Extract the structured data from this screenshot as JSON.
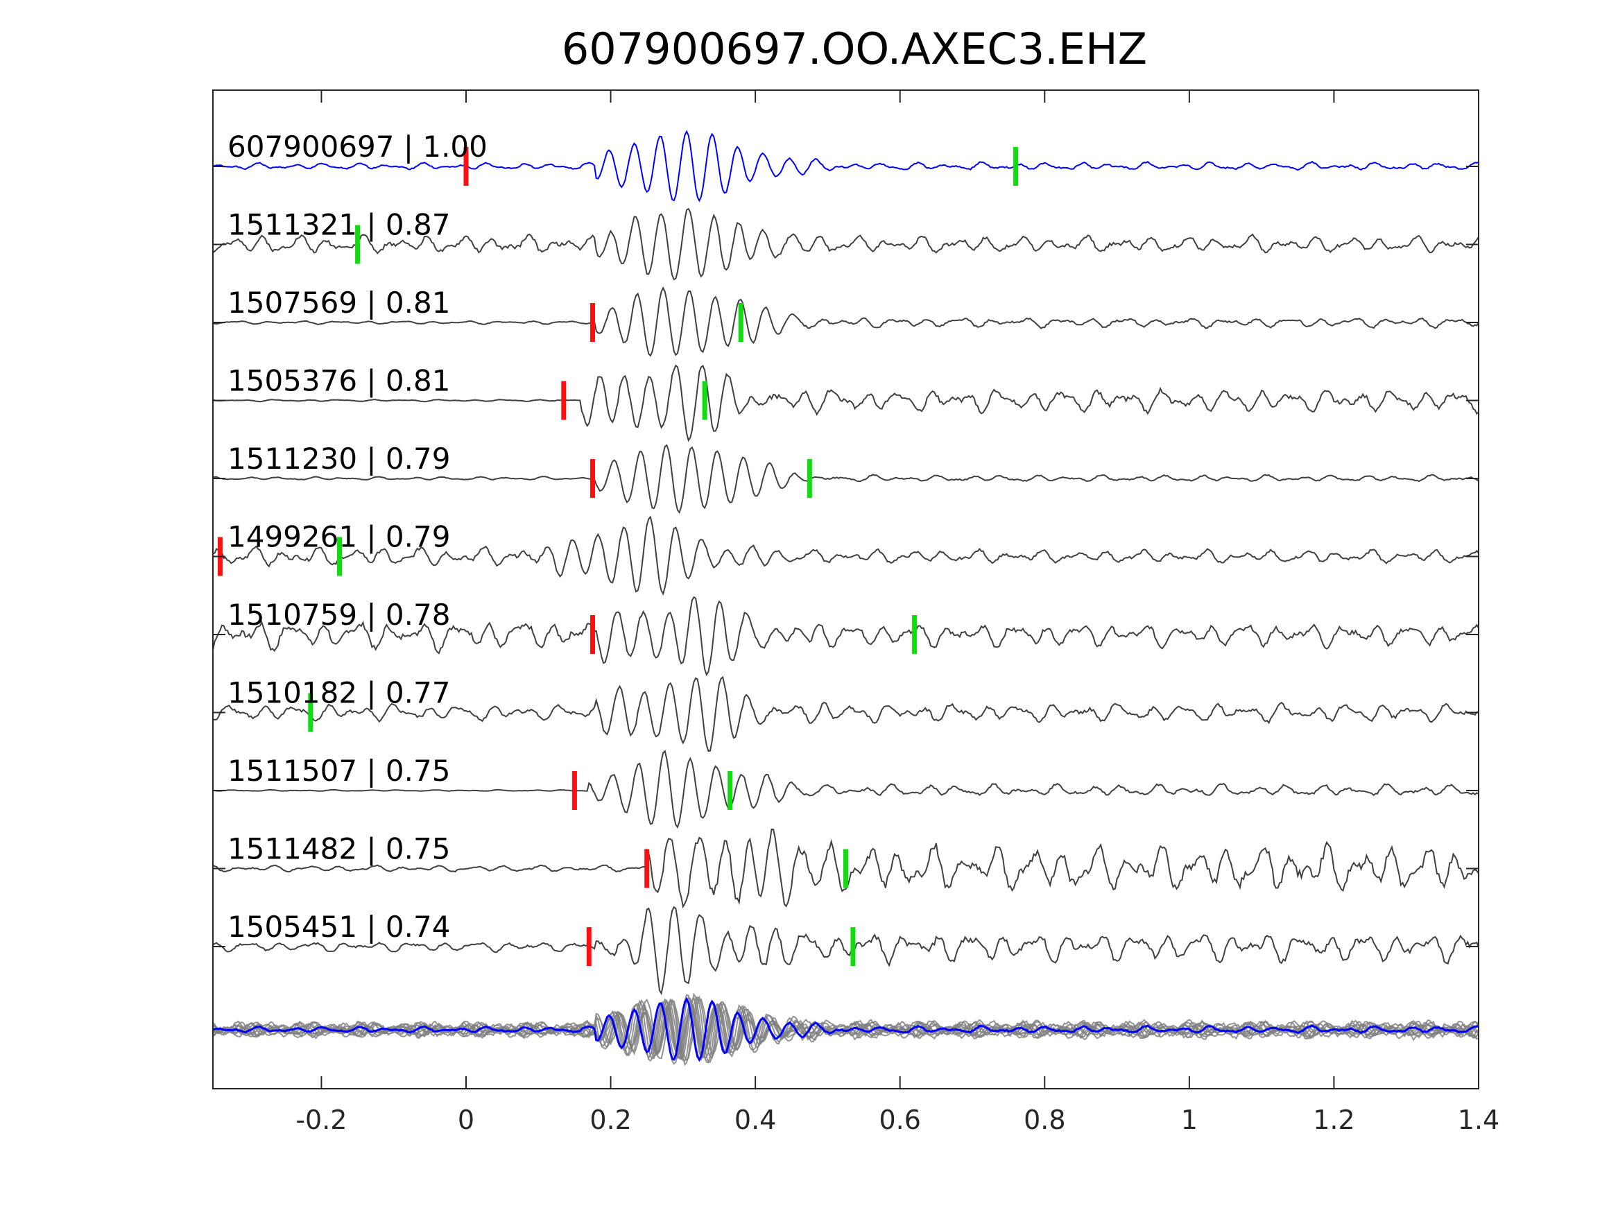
{
  "chart_data": {
    "type": "line",
    "title": "607900697.OO.AXEC3.EHZ",
    "xlabel": "",
    "ylabel": "",
    "xlim": [
      -0.35,
      1.4
    ],
    "xticks": [
      -0.2,
      0,
      0.2,
      0.4,
      0.6,
      0.8,
      1,
      1.2,
      1.4
    ],
    "xtick_labels": [
      "-0.2",
      "0",
      "0.2",
      "0.4",
      "0.6",
      "0.8",
      "1",
      "1.2",
      "1.4"
    ],
    "grid": false,
    "legend": "none",
    "colors": {
      "template": "#0000ff",
      "trace": "#404040",
      "overlay": "#808080",
      "p_pick": "#ff1010",
      "s_pick": "#10dd10",
      "axes": "#262626"
    },
    "series": [
      {
        "label": "607900697 | 1.00",
        "id": "607900697",
        "cc": 1.0,
        "color": "#0000ff",
        "p_pick": 0.0,
        "s_pick": 0.76,
        "onset": 0.18,
        "pre_noise": 0.1,
        "post_noise": 0.12,
        "seed": 1
      },
      {
        "label": "1511321 | 0.87",
        "id": "1511321",
        "cc": 0.87,
        "color": "#404040",
        "p_pick": null,
        "s_pick": -0.15,
        "onset": 0.18,
        "pre_noise": 0.28,
        "post_noise": 0.25,
        "seed": 2
      },
      {
        "label": "1507569 | 0.81",
        "id": "1507569",
        "cc": 0.81,
        "color": "#404040",
        "p_pick": 0.175,
        "s_pick": 0.38,
        "onset": 0.18,
        "pre_noise": 0.05,
        "post_noise": 0.15,
        "seed": 3
      },
      {
        "label": "1505376 | 0.81",
        "id": "1505376",
        "cc": 0.81,
        "color": "#404040",
        "p_pick": 0.135,
        "s_pick": 0.33,
        "onset": 0.16,
        "pre_noise": 0.03,
        "post_noise": 0.35,
        "seed": 4
      },
      {
        "label": "1511230 | 0.79",
        "id": "1511230",
        "cc": 0.79,
        "color": "#404040",
        "p_pick": 0.175,
        "s_pick": 0.475,
        "onset": 0.18,
        "pre_noise": 0.05,
        "post_noise": 0.1,
        "seed": 5
      },
      {
        "label": "1499261 | 0.79",
        "id": "1499261",
        "cc": 0.79,
        "color": "#404040",
        "p_pick": -0.34,
        "s_pick": -0.175,
        "onset": 0.12,
        "pre_noise": 0.3,
        "post_noise": 0.2,
        "seed": 6
      },
      {
        "label": "1510759 | 0.78",
        "id": "1510759",
        "cc": 0.78,
        "color": "#404040",
        "p_pick": 0.175,
        "s_pick": 0.62,
        "onset": 0.18,
        "pre_noise": 0.45,
        "post_noise": 0.35,
        "seed": 7
      },
      {
        "label": "1510182 | 0.77",
        "id": "1510182",
        "cc": 0.77,
        "color": "#404040",
        "p_pick": null,
        "s_pick": -0.215,
        "onset": 0.18,
        "pre_noise": 0.25,
        "post_noise": 0.28,
        "seed": 8
      },
      {
        "label": "1511507 | 0.75",
        "id": "1511507",
        "cc": 0.75,
        "color": "#404040",
        "p_pick": 0.15,
        "s_pick": 0.365,
        "onset": 0.17,
        "pre_noise": 0.02,
        "post_noise": 0.18,
        "seed": 9
      },
      {
        "label": "1511482 | 0.75",
        "id": "1511482",
        "cc": 0.75,
        "color": "#404040",
        "p_pick": 0.25,
        "s_pick": 0.525,
        "onset": 0.25,
        "pre_noise": 0.1,
        "post_noise": 0.7,
        "seed": 10
      },
      {
        "label": "1505451 | 0.74",
        "id": "1505451",
        "cc": 0.74,
        "color": "#404040",
        "p_pick": 0.17,
        "s_pick": 0.535,
        "onset": 0.18,
        "pre_noise": 0.15,
        "post_noise": 0.45,
        "seed": 11
      }
    ],
    "stack": {
      "description_id": "overlay",
      "onset": 0.18,
      "seed": 20
    }
  }
}
